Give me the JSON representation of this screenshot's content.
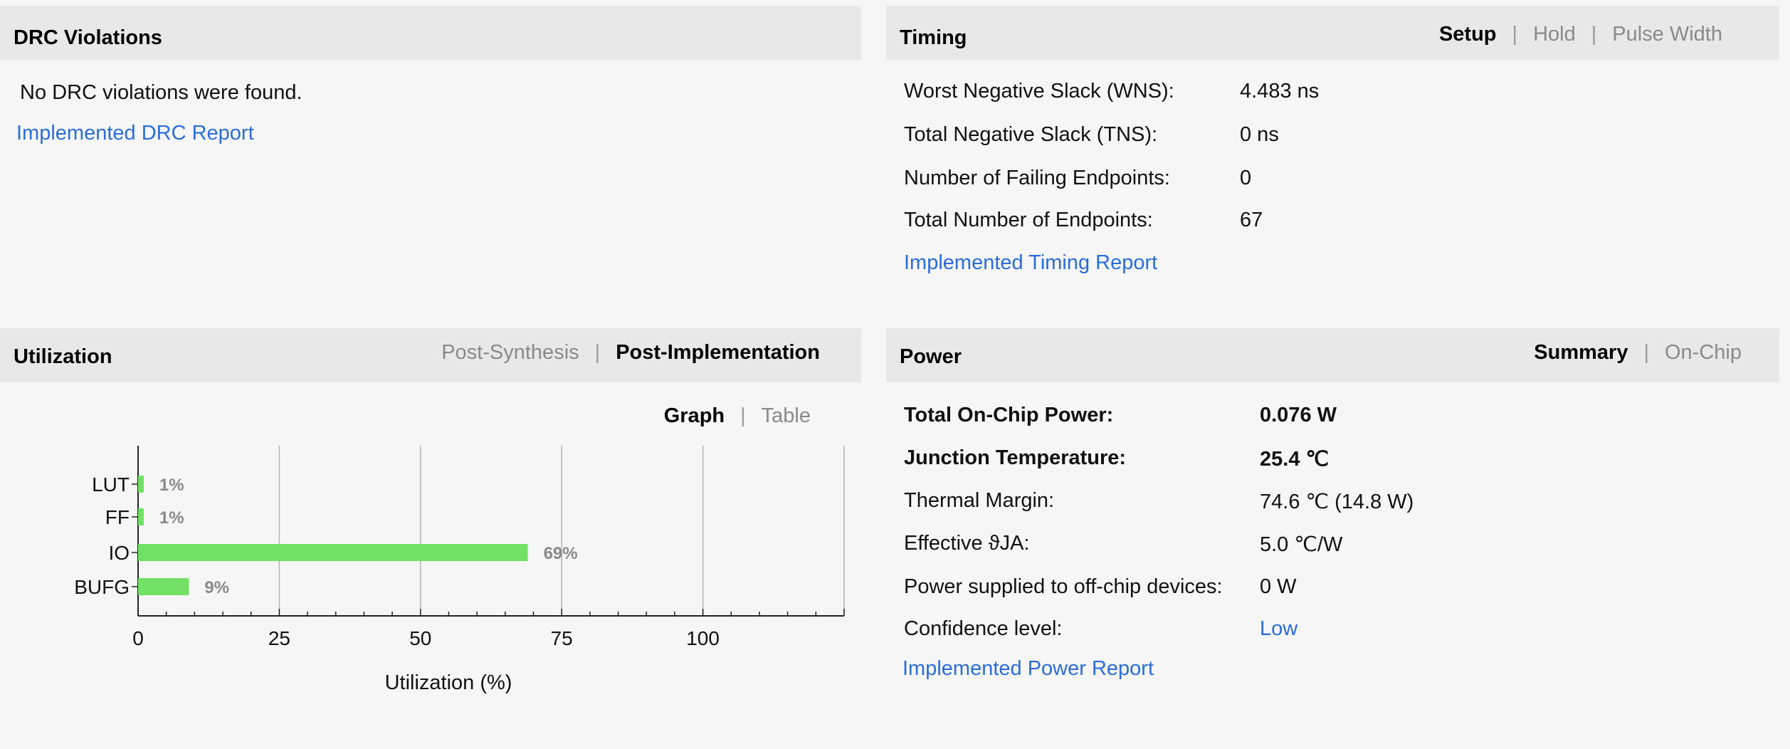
{
  "drc": {
    "title": "DRC Violations",
    "message": "No DRC violations were found.",
    "report_link": "Implemented DRC Report"
  },
  "timing": {
    "title": "Timing",
    "tabs": [
      "Setup",
      "Hold",
      "Pulse Width"
    ],
    "active_tab": "Setup",
    "rows": [
      {
        "label": "Worst Negative Slack (WNS):",
        "value": "4.483 ns"
      },
      {
        "label": "Total Negative Slack (TNS):",
        "value": "0 ns"
      },
      {
        "label": "Number of Failing Endpoints:",
        "value": "0"
      },
      {
        "label": "Total Number of Endpoints:",
        "value": "67"
      }
    ],
    "report_link": "Implemented Timing Report"
  },
  "utilization": {
    "title": "Utilization",
    "tabs": [
      "Post-Synthesis",
      "Post-Implementation"
    ],
    "active_tab": "Post-Implementation",
    "view_tabs": [
      "Graph",
      "Table"
    ],
    "active_view": "Graph"
  },
  "power": {
    "title": "Power",
    "tabs": [
      "Summary",
      "On-Chip"
    ],
    "active_tab": "Summary",
    "rows": [
      {
        "label": "Total On-Chip Power:",
        "value": "0.076 W",
        "bold": true
      },
      {
        "label": "Junction Temperature:",
        "value": "25.4 ℃",
        "bold": true
      },
      {
        "label": "Thermal Margin:",
        "value": "74.6 ℃ (14.8 W)",
        "bold": false
      },
      {
        "label": "Effective ϑJA:",
        "value": "5.0 ℃/W",
        "bold": false
      },
      {
        "label": "Power supplied to off-chip devices:",
        "value": "0 W",
        "bold": false
      },
      {
        "label": "Confidence level:",
        "value": "Low",
        "bold": false,
        "link": true
      }
    ],
    "report_link": "Implemented Power Report"
  },
  "colors": {
    "bar": "#72e065",
    "link": "#2a6dd9",
    "header_bg": "#e8e8e8",
    "page_bg": "#f6f6f6"
  },
  "chart_data": {
    "type": "bar",
    "orientation": "horizontal",
    "categories": [
      "LUT",
      "FF",
      "IO",
      "BUFG"
    ],
    "values": [
      1,
      1,
      69,
      9
    ],
    "value_labels": [
      "1%",
      "1%",
      "69%",
      "9%"
    ],
    "xlabel": "Utilization (%)",
    "xticks": [
      "0",
      "25",
      "50",
      "75",
      "100"
    ],
    "xlim": [
      0,
      125
    ],
    "grid": true,
    "legend": "none"
  }
}
